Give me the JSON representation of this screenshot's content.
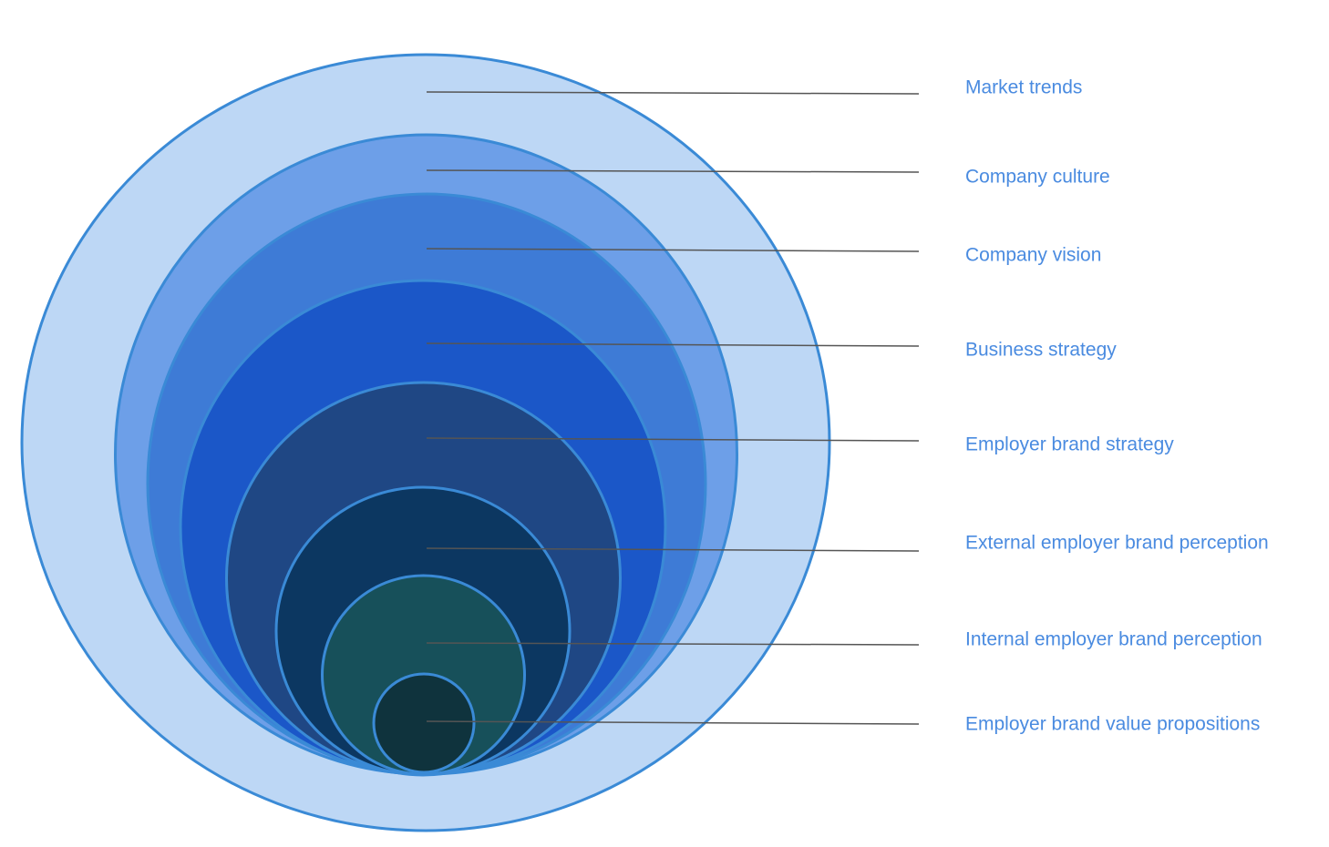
{
  "nodes": [
    {
      "label": "Market trends"
    },
    {
      "label": "Company culture"
    },
    {
      "label": "Company vision"
    },
    {
      "label": "Business strategy"
    },
    {
      "label": "Employer brand strategy"
    },
    {
      "label": "External employer brand perception"
    },
    {
      "label": "Internal employer brand perception"
    },
    {
      "label": "Employer brand value propositions"
    }
  ]
}
